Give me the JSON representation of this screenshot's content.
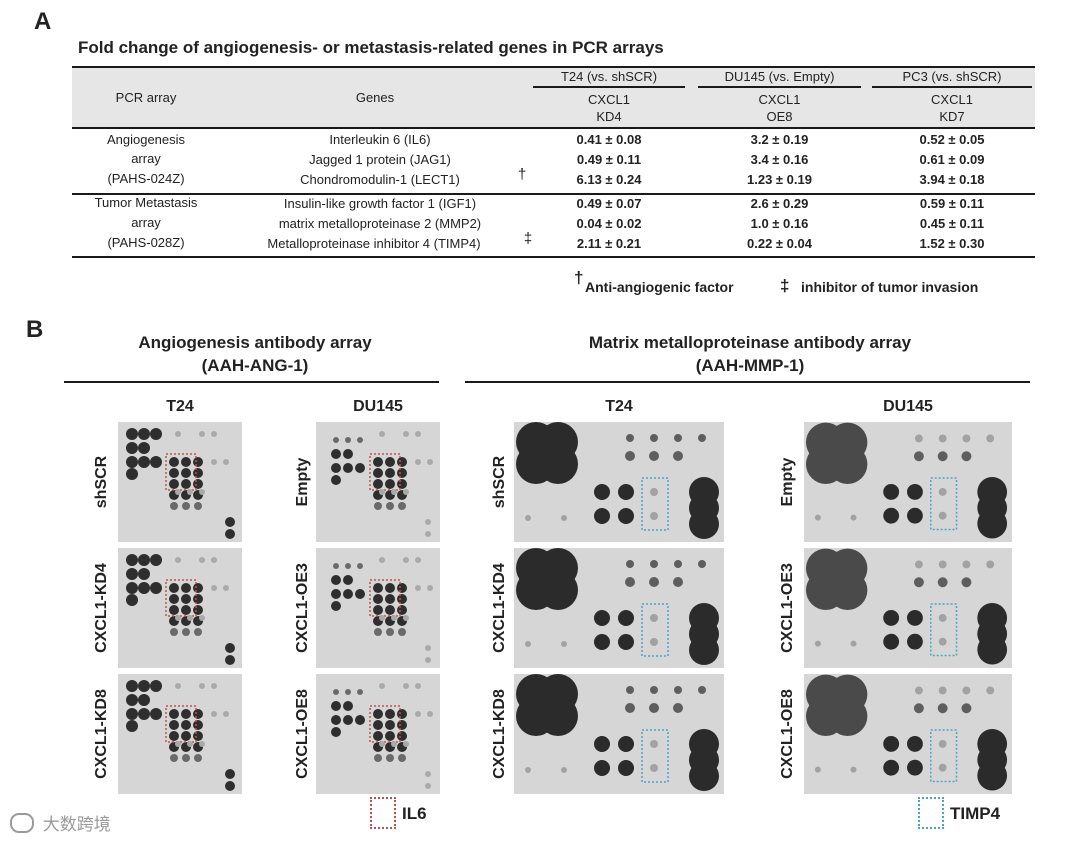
{
  "panel_a": {
    "letter": "A",
    "title": "Fold change of angiogenesis- or metastasis-related genes in PCR arrays",
    "header": {
      "col_pcr_array": "PCR array",
      "col_genes": "Genes",
      "groups": [
        {
          "name": "T24 (vs. shSCR)",
          "line1": "CXCL1",
          "line2": "KD4"
        },
        {
          "name": "DU145 (vs. Empty)",
          "line1": "CXCL1",
          "line2": "OE8"
        },
        {
          "name": "PC3 (vs. shSCR)",
          "line1": "CXCL1",
          "line2": "KD7"
        }
      ]
    },
    "sections": [
      {
        "array_lines": [
          "Angiogenesis",
          "array",
          "(PAHS-024Z)"
        ],
        "rows": [
          {
            "gene": "Interleukin 6 (IL6)",
            "mark": "",
            "values": [
              "0.41 ± 0.08",
              "3.2 ± 0.19",
              "0.52 ± 0.05"
            ]
          },
          {
            "gene": "Jagged 1 protein (JAG1)",
            "mark": "",
            "values": [
              "0.49 ± 0.11",
              "3.4 ± 0.16",
              "0.61 ± 0.09"
            ]
          },
          {
            "gene": "Chondromodulin-1 (LECT1)",
            "mark": "†",
            "values": [
              "6.13 ± 0.24",
              "1.23 ± 0.19",
              "3.94 ± 0.18"
            ]
          }
        ]
      },
      {
        "array_lines": [
          "Tumor Metastasis",
          "array",
          "(PAHS-028Z)"
        ],
        "rows": [
          {
            "gene": "Insulin-like growth factor 1 (IGF1)",
            "mark": "",
            "values": [
              "0.49 ± 0.07",
              "2.6 ± 0.29",
              "0.59 ± 0.11"
            ]
          },
          {
            "gene": "matrix metalloproteinase 2 (MMP2)",
            "mark": "",
            "values": [
              "0.04 ± 0.02",
              "1.0 ± 0.16",
              "0.45 ± 0.11"
            ]
          },
          {
            "gene": "Metalloproteinase inhibitor 4 (TIMP4)",
            "mark": "‡",
            "values": [
              "2.11 ± 0.21",
              "0.22 ± 0.04",
              "1.52 ± 0.30"
            ]
          }
        ]
      }
    ],
    "footnotes": [
      {
        "symbol": "†",
        "text": "Anti-angiogenic factor"
      },
      {
        "symbol": "‡",
        "text": "inhibitor of tumor invasion"
      }
    ]
  },
  "panel_b": {
    "letter": "B",
    "arrays": [
      {
        "title_line1": "Angiogenesis antibody array",
        "title_line2": "(AAH-ANG-1)"
      },
      {
        "title_line1": "Matrix metalloproteinase antibody array",
        "title_line2": "(AAH-MMP-1)"
      }
    ],
    "columns": [
      {
        "label": "T24",
        "rows": [
          "shSCR",
          "CXCL1-KD4",
          "CXCL1-KD8"
        ]
      },
      {
        "label": "DU145",
        "rows": [
          "Empty",
          "CXCL1-OE3",
          "CXCL1-OE8"
        ]
      },
      {
        "label": "T24",
        "rows": [
          "shSCR",
          "CXCL1-KD4",
          "CXCL1-KD8"
        ]
      },
      {
        "label": "DU145",
        "rows": [
          "Empty",
          "CXCL1-OE3",
          "CXCL1-OE8"
        ]
      }
    ],
    "legend": [
      {
        "label": "IL6",
        "color": "#c0504d"
      },
      {
        "label": "TIMP4",
        "color": "#4ba3c7"
      }
    ]
  },
  "watermark": "大数跨境"
}
